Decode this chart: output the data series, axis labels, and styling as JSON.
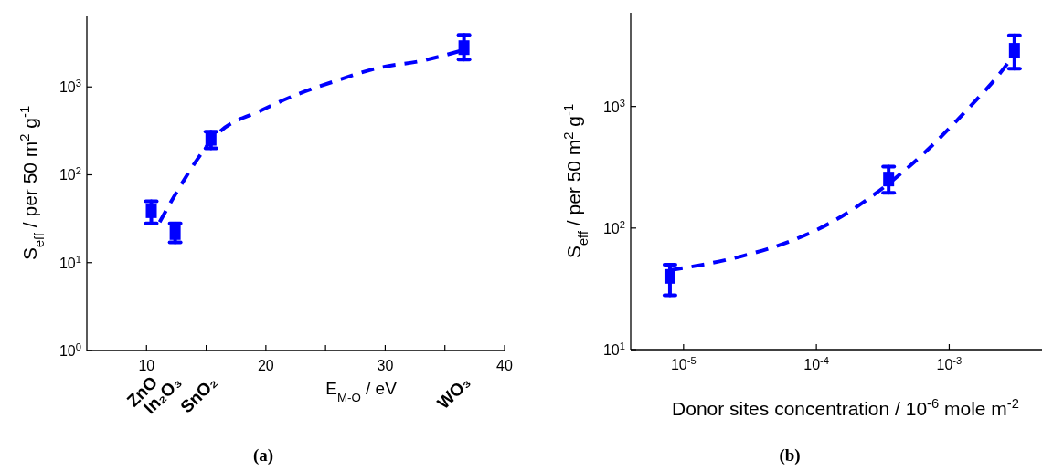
{
  "chart_data": [
    {
      "type": "scatter",
      "xlabel": "E$_{M-O}$ / eV",
      "ylabel": "S$_{eff}$ / per 50 m$^{2}$ g$^{-1}$",
      "log": "y",
      "xlim": [
        5,
        40
      ],
      "ylim": [
        1,
        6500
      ],
      "xticks": [
        10,
        {
          "value": 15,
          "label": null
        },
        20,
        {
          "value": 25,
          "label": null
        },
        30,
        {
          "value": 35,
          "label": null
        },
        40
      ],
      "yticks": [
        {
          "value": 1,
          "label": "10$^{0}$"
        },
        {
          "value": 10,
          "label": "10$^{1}$"
        },
        {
          "value": 100,
          "label": "10$^{2}$"
        },
        {
          "value": 1000,
          "label": "10$^{3}$"
        }
      ],
      "grid": false,
      "series": [
        {
          "color": "#0000ff",
          "marker": "square",
          "x": [
            10.4,
            12.4,
            15.4,
            36.6
          ],
          "values": [
            39,
            22,
            260,
            2800
          ],
          "errors": [
            [
              28,
              50
            ],
            [
              17,
              28
            ],
            [
              200,
              310
            ],
            [
              2050,
              3900
            ]
          ]
        },
        {
          "type": "line",
          "color": "#0000ff",
          "line_style": "dashed",
          "marker": "none",
          "x": [
            11.1,
            12.6,
            15.9,
            19.6,
            22.7,
            26.1,
            29.2,
            33.2,
            36.6
          ],
          "values": [
            29,
            66,
            288,
            540,
            830,
            1200,
            1620,
            2000,
            2640
          ]
        }
      ],
      "annotations": [
        "ZnO",
        "In₂O₃",
        "SnO₂",
        "WO₃",
        "(a)"
      ]
    },
    {
      "type": "scatter",
      "xlabel": "Donor sites concentration / 10$^{-6}$ mole m$^{-2}$",
      "ylabel": "S$_{eff}$ / per 50 m$^{2}$ g$^{-1}$",
      "log": "xy",
      "xlim": [
        4e-06,
        0.005
      ],
      "ylim": [
        10,
        5900
      ],
      "xticks": [
        {
          "value": 1e-05,
          "label": "10$^{-5}$"
        },
        {
          "value": 0.0001,
          "label": "10$^{-4}$"
        },
        {
          "value": 0.001,
          "label": "10$^{-3}$"
        }
      ],
      "yticks": [
        {
          "value": 10,
          "label": "10$^{1}$"
        },
        {
          "value": 100,
          "label": "10$^{2}$"
        },
        {
          "value": 1000,
          "label": "10$^{3}$"
        }
      ],
      "grid": false,
      "series": [
        {
          "color": "#0000ff",
          "marker": "square",
          "x": [
            7.9e-06,
            0.00035,
            0.0031
          ],
          "values": [
            40,
            253,
            2900
          ],
          "errors": [
            [
              28,
              50
            ],
            [
              195,
              320
            ],
            [
              2050,
              3850
            ]
          ]
        },
        {
          "type": "line",
          "color": "#0000ff",
          "line_style": "dashed",
          "marker": "none",
          "x": [
            7.9e-06,
            2.8e-05,
            6.6e-05,
            0.000123,
            0.000275,
            0.00068,
            0.00135,
            0.0024,
            0.003
          ],
          "values": [
            45,
            59,
            79,
            108,
            190,
            435,
            930,
            1860,
            2560
          ]
        }
      ],
      "annotations": [
        "(b)"
      ]
    }
  ]
}
